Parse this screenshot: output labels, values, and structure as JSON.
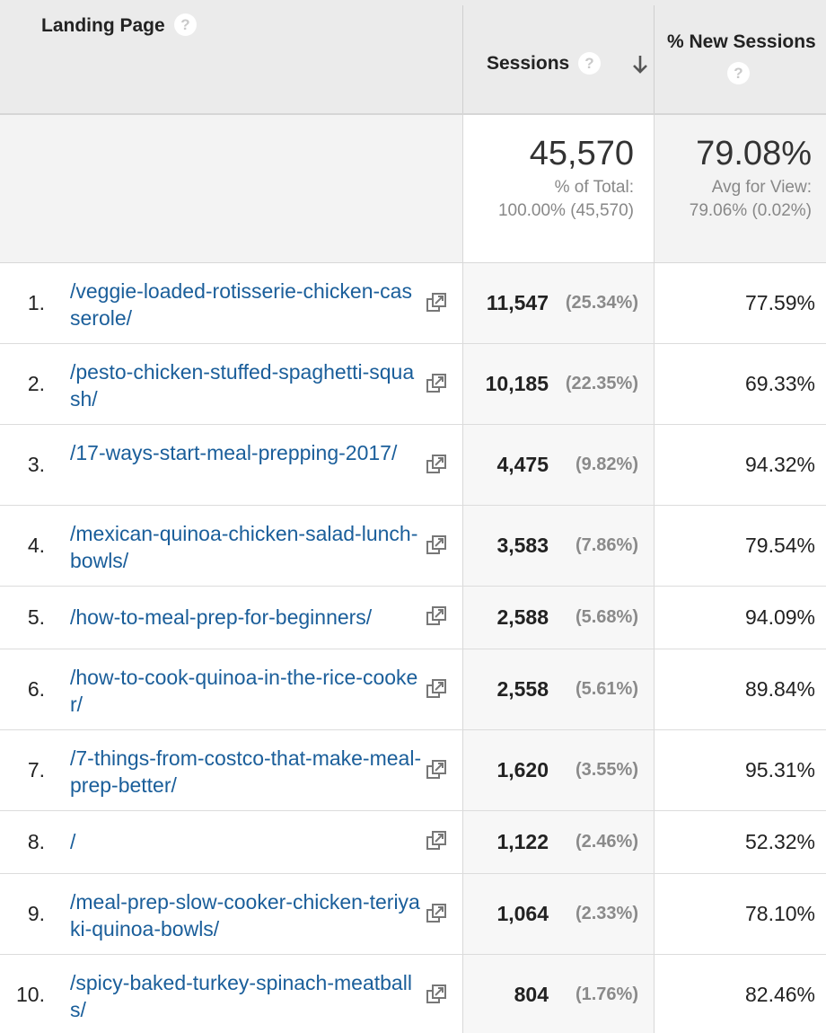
{
  "header": {
    "landing_page": "Landing Page",
    "sessions": "Sessions",
    "new_sessions": "% New Sessions",
    "help_glyph": "?"
  },
  "totals": {
    "sessions_value": "45,570",
    "sessions_line1": "% of Total:",
    "sessions_line2": "100.00% (45,570)",
    "new_value": "79.08%",
    "new_line1": "Avg for View:",
    "new_line2": "79.06% (0.02%)"
  },
  "rows": [
    {
      "index": "1.",
      "page": "/veggie-loaded-rotisserie-chicken-casserole/",
      "sessions": "11,547",
      "pct": "(25.34%)",
      "new": "77.59%"
    },
    {
      "index": "2.",
      "page": "/pesto-chicken-stuffed-spaghetti-squash/",
      "sessions": "10,185",
      "pct": "(22.35%)",
      "new": "69.33%"
    },
    {
      "index": "3.",
      "page": "/17-ways-start-meal-prepping-2017/",
      "sessions": "4,475",
      "pct": "(9.82%)",
      "new": "94.32%"
    },
    {
      "index": "4.",
      "page": "/mexican-quinoa-chicken-salad-lunch-bowls/",
      "sessions": "3,583",
      "pct": "(7.86%)",
      "new": "79.54%"
    },
    {
      "index": "5.",
      "page": "/how-to-meal-prep-for-beginners/",
      "sessions": "2,588",
      "pct": "(5.68%)",
      "new": "94.09%"
    },
    {
      "index": "6.",
      "page": "/how-to-cook-quinoa-in-the-rice-cooker/",
      "sessions": "2,558",
      "pct": "(5.61%)",
      "new": "89.84%"
    },
    {
      "index": "7.",
      "page": "/7-things-from-costco-that-make-meal-prep-better/",
      "sessions": "1,620",
      "pct": "(3.55%)",
      "new": "95.31%"
    },
    {
      "index": "8.",
      "page": "/",
      "sessions": "1,122",
      "pct": "(2.46%)",
      "new": "52.32%"
    },
    {
      "index": "9.",
      "page": "/meal-prep-slow-cooker-chicken-teriyaki-quinoa-bowls/",
      "sessions": "1,064",
      "pct": "(2.33%)",
      "new": "78.10%"
    },
    {
      "index": "10.",
      "page": "/spicy-baked-turkey-spinach-meatballs/",
      "sessions": "804",
      "pct": "(1.76%)",
      "new": "82.46%"
    }
  ],
  "icons": {
    "help": "help-circle-icon",
    "sort": "arrow-down-icon",
    "external": "open-in-new-window-icon"
  }
}
